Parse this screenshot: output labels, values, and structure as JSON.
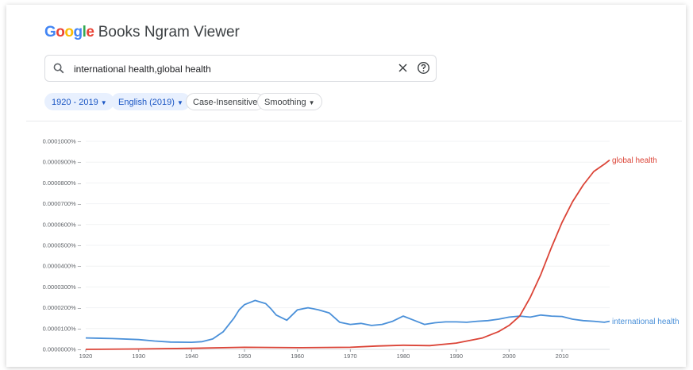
{
  "logo": {
    "letters": [
      {
        "ch": "G",
        "color": "#4285f4"
      },
      {
        "ch": "o",
        "color": "#ea4335"
      },
      {
        "ch": "o",
        "color": "#fbbc05"
      },
      {
        "ch": "g",
        "color": "#4285f4"
      },
      {
        "ch": "l",
        "color": "#34a853"
      },
      {
        "ch": "e",
        "color": "#ea4335"
      }
    ],
    "title": "Books Ngram Viewer"
  },
  "search": {
    "query": "international health,global health",
    "clear_icon": "close-icon",
    "help_icon": "help-circle-icon",
    "search_icon": "search-icon"
  },
  "chips": [
    {
      "label": "1920 - 2019",
      "dropdown": true,
      "style": "blue"
    },
    {
      "label": "English (2019)",
      "dropdown": true,
      "style": "blue"
    },
    {
      "label": "Case-Insensitive",
      "dropdown": false,
      "style": "gray"
    },
    {
      "label": "Smoothing",
      "dropdown": true,
      "style": "gray"
    }
  ],
  "chart_data": {
    "type": "line",
    "x_range": [
      1920,
      2019
    ],
    "xticks": [
      "1920",
      "1930",
      "1940",
      "1950",
      "1960",
      "1970",
      "1980",
      "1990",
      "2000",
      "2010"
    ],
    "yticks": [
      "0.0000000%",
      "0.0000100%",
      "0.0000200%",
      "0.0000300%",
      "0.0000400%",
      "0.0000500%",
      "0.0000600%",
      "0.0000700%",
      "0.0000800%",
      "0.0000900%",
      "0.0001000%"
    ],
    "ylim": [
      0,
      0.0001
    ],
    "grid": true,
    "series": [
      {
        "name": "international health",
        "color": "#4a90d9",
        "x": [
          1920,
          1925,
          1930,
          1933,
          1936,
          1940,
          1942,
          1944,
          1946,
          1948,
          1949,
          1950,
          1952,
          1954,
          1955,
          1956,
          1958,
          1960,
          1962,
          1963,
          1964,
          1966,
          1968,
          1970,
          1972,
          1974,
          1976,
          1978,
          1980,
          1982,
          1984,
          1986,
          1988,
          1990,
          1992,
          1994,
          1996,
          1998,
          2000,
          2002,
          2004,
          2006,
          2008,
          2010,
          2012,
          2014,
          2016,
          2018,
          2019
        ],
        "y": [
          5.5e-06,
          5.2e-06,
          4.7e-06,
          4e-06,
          3.5e-06,
          3.4e-06,
          3.7e-06,
          5e-06,
          8.5e-06,
          1.5e-05,
          1.9e-05,
          2.15e-05,
          2.35e-05,
          2.2e-05,
          1.95e-05,
          1.65e-05,
          1.4e-05,
          1.9e-05,
          2e-05,
          1.95e-05,
          1.9e-05,
          1.75e-05,
          1.3e-05,
          1.2e-05,
          1.25e-05,
          1.15e-05,
          1.2e-05,
          1.35e-05,
          1.6e-05,
          1.4e-05,
          1.2e-05,
          1.28e-05,
          1.32e-05,
          1.32e-05,
          1.3e-05,
          1.35e-05,
          1.38e-05,
          1.45e-05,
          1.55e-05,
          1.6e-05,
          1.55e-05,
          1.65e-05,
          1.6e-05,
          1.58e-05,
          1.45e-05,
          1.38e-05,
          1.35e-05,
          1.3e-05,
          1.35e-05
        ]
      },
      {
        "name": "global health",
        "color": "#db4437",
        "x": [
          1920,
          1930,
          1940,
          1950,
          1960,
          1970,
          1975,
          1980,
          1985,
          1990,
          1995,
          1998,
          2000,
          2002,
          2004,
          2006,
          2008,
          2010,
          2012,
          2014,
          2016,
          2018,
          2019
        ],
        "y": [
          0,
          2e-07,
          5e-07,
          1e-06,
          8e-07,
          1e-06,
          1.6e-06,
          2e-06,
          1.8e-06,
          3e-06,
          5.5e-06,
          8.5e-06,
          1.15e-05,
          1.6e-05,
          2.5e-05,
          3.6e-05,
          4.9e-05,
          6.1e-05,
          7.1e-05,
          7.9e-05,
          8.55e-05,
          8.9e-05,
          9.1e-05
        ]
      }
    ]
  }
}
